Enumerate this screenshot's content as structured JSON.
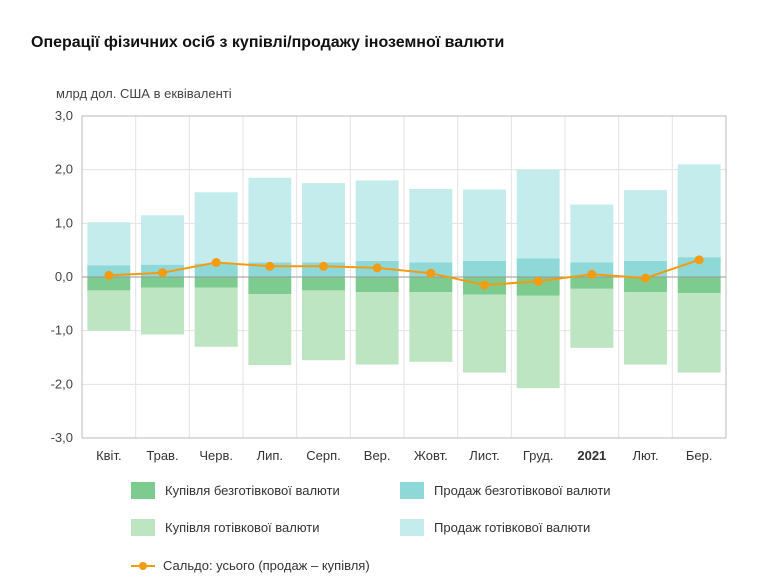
{
  "chart_data": {
    "type": "bar",
    "title": "Операції фізичних осіб з купівлі/продажу іноземної валюти",
    "ylabel": "млрд дол. США в еквіваленті",
    "ylim": [
      -3.0,
      3.0
    ],
    "yticks": [
      "3,0",
      "2,0",
      "1,0",
      "0,0",
      "-1,0",
      "-2,0",
      "-3,0"
    ],
    "ytick_values": [
      3,
      2,
      1,
      0,
      -1,
      -2,
      -3
    ],
    "categories": [
      "Квіт.",
      "Трав.",
      "Черв.",
      "Лип.",
      "Серп.",
      "Вер.",
      "Жовт.",
      "Лист.",
      "Груд.",
      "2021",
      "Лют.",
      "Бер."
    ],
    "bold_category": "2021",
    "grid": true,
    "legend_placement": "bottom",
    "series": [
      {
        "name": "Купівля безготівкової валюти",
        "kind": "bar",
        "color": "#7dcb8f",
        "values": [
          -0.25,
          -0.2,
          -0.2,
          -0.32,
          -0.25,
          -0.28,
          -0.28,
          -0.33,
          -0.35,
          -0.22,
          -0.28,
          -0.3
        ]
      },
      {
        "name": "Купівля готівкової валюти",
        "kind": "bar",
        "color": "#bde5c2",
        "values": [
          -0.75,
          -0.87,
          -1.1,
          -1.32,
          -1.3,
          -1.35,
          -1.3,
          -1.45,
          -1.72,
          -1.1,
          -1.35,
          -1.48
        ]
      },
      {
        "name": "Продаж безготівкової валюти",
        "kind": "bar",
        "color": "#8fd8d8",
        "values": [
          0.22,
          0.23,
          0.25,
          0.27,
          0.27,
          0.3,
          0.27,
          0.3,
          0.35,
          0.27,
          0.3,
          0.37
        ]
      },
      {
        "name": "Продаж готівкової валюти",
        "kind": "bar",
        "color": "#c5ecec",
        "values": [
          0.8,
          0.92,
          1.33,
          1.58,
          1.48,
          1.5,
          1.37,
          1.33,
          1.65,
          1.08,
          1.32,
          1.73
        ]
      },
      {
        "name": "Сальдо: усього (продаж – купівля)",
        "kind": "line",
        "color": "#f39c12",
        "values": [
          0.03,
          0.08,
          0.27,
          0.2,
          0.2,
          0.17,
          0.07,
          -0.15,
          -0.08,
          0.05,
          -0.02,
          0.32
        ]
      }
    ],
    "legend_order": [
      0,
      2,
      1,
      3,
      4
    ]
  },
  "colors": {
    "grid": "#e3e3e3",
    "axis": "#bbbbbb",
    "zero": "#9a9a9a"
  }
}
